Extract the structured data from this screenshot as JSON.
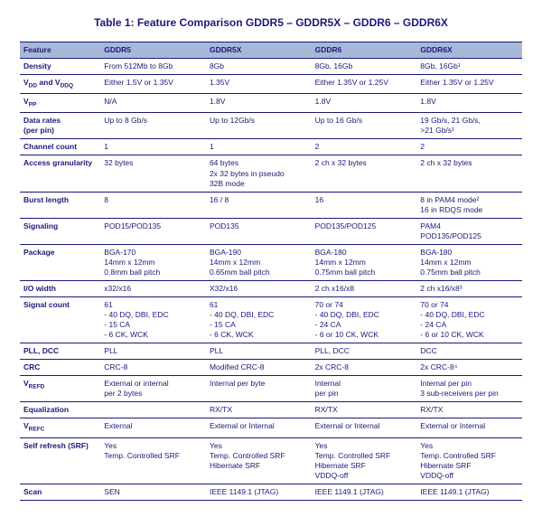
{
  "title": "Table 1: Feature Comparison GDDR5 – GDDR5X – GDDR6 – GDDR6X",
  "headers": {
    "feature": "Feature",
    "c1": "GDDR5",
    "c2": "GDDR5X",
    "c3": "GDDR6",
    "c4": "GDDR6X"
  },
  "rows": {
    "density": {
      "label": "Density",
      "c1": "From 512Mb to 8Gb",
      "c2": "8Gb",
      "c3": "8Gb, 16Gb",
      "c4": "8Gb, 16Gb¹"
    },
    "vdd": {
      "label_pre": "V",
      "label_sub1": "DD",
      "label_mid": " and V",
      "label_sub2": "DDQ",
      "c1": "Either 1.5V or 1.35V",
      "c2": "1.35V",
      "c3": "Either 1.35V or 1.25V",
      "c4": "Either 1.35V or 1.25V"
    },
    "vpp": {
      "label_pre": "V",
      "label_sub": "PP",
      "c1": "N/A",
      "c2": "1.8V",
      "c3": "1.8V",
      "c4": "1.8V"
    },
    "datarates": {
      "label_l1": "Data rates",
      "label_l2": "(per pin)",
      "c1": "Up to 8 Gb/s",
      "c2": "Up to 12Gb/s",
      "c3": "Up to 16 Gb/s",
      "c4_l1": "19 Gb/s, 21 Gb/s,",
      "c4_l2": ">21 Gb/s¹"
    },
    "channel": {
      "label": "Channel count",
      "c1": "1",
      "c2": "1",
      "c3": "2",
      "c4": "2"
    },
    "access": {
      "label": "Access granularity",
      "c1": "32 bytes",
      "c2_l1": "64 bytes",
      "c2_l2": "2x 32 bytes in pseudo",
      "c2_l3": "32B mode",
      "c3": "2 ch x 32 bytes",
      "c4": "2 ch x 32 bytes"
    },
    "burst": {
      "label": "Burst length",
      "c1": "8",
      "c2": "16 / 8",
      "c3": "16",
      "c4_l1": "8 in PAM4 mode²",
      "c4_l2": "16 in RDQS mode"
    },
    "signaling": {
      "label": "Signaling",
      "c1": "POD15/POD135",
      "c2": "POD135",
      "c3": "POD135/POD125",
      "c4_l1": "PAM4",
      "c4_l2": "POD135/POD125"
    },
    "package": {
      "label": "Package",
      "c1_l1": "BGA-170",
      "c1_l2": "14mm x 12mm",
      "c1_l3": "0.8mm ball pitch",
      "c2_l1": "BGA-190",
      "c2_l2": "14mm x 12mm",
      "c2_l3": "0.65mm ball pitch",
      "c3_l1": "BGA-180",
      "c3_l2": "14mm x 12mm",
      "c3_l3": "0.75mm ball pitch",
      "c4_l1": "BGA-180",
      "c4_l2": "14mm x 12mm",
      "c4_l3": "0.75mm ball pitch"
    },
    "iowidth": {
      "label": "I/O width",
      "c1": "x32/x16",
      "c2": "X32/x16",
      "c3": "2 ch x16/x8",
      "c4": "2 ch x16/x8³"
    },
    "signalcount": {
      "label": "Signal count",
      "c1_l1": "61",
      "c1_l2": "- 40 DQ, DBI, EDC",
      "c1_l3": "- 15 CA",
      "c1_l4": "- 6 CK, WCK",
      "c2_l1": "61",
      "c2_l2": "- 40 DQ, DBI, EDC",
      "c2_l3": "- 15 CA",
      "c2_l4": "- 6 CK, WCK",
      "c3_l1": "70 or 74",
      "c3_l2": "- 40 DQ, DBI, EDC",
      "c3_l3": "- 24 CA",
      "c3_l4": "- 6 or 10 CK, WCK",
      "c4_l1": "70 or 74",
      "c4_l2": "- 40 DQ, DBI, EDC",
      "c4_l3": "- 24 CA",
      "c4_l4": "- 6 or 10 CK, WCK"
    },
    "pll": {
      "label": "PLL, DCC",
      "c1": "PLL",
      "c2": "PLL",
      "c3": "PLL, DCC",
      "c4": "DCC"
    },
    "crc": {
      "label": "CRC",
      "c1": "CRC-8",
      "c2": "Modified CRC-8",
      "c3": "2x CRC-8",
      "c4": "2x CRC-8⁴"
    },
    "vrefd": {
      "label_pre": "V",
      "label_sub": "REFD",
      "c1_l1": "External or internal",
      "c1_l2": "per 2 bytes",
      "c2": "Internal per byte",
      "c3_l1": "Internal",
      "c3_l2": "per pin",
      "c4_l1": "Internal per pin",
      "c4_l2": "3 sub-receivers per pin"
    },
    "equalization": {
      "label": "Equalization",
      "c1": "",
      "c2": "RX/TX",
      "c3": "RX/TX",
      "c4": "RX/TX"
    },
    "vrefc": {
      "label_pre": "V",
      "label_sub": "REFC",
      "c1": "External",
      "c2": "External or Internal",
      "c3": "External or Internal",
      "c4": "External or Internal"
    },
    "selfrefresh": {
      "label": "Self refresh (SRF)",
      "c1_l1": "Yes",
      "c1_l2": "Temp. Controlled SRF",
      "c2_l1": "Yes",
      "c2_l2": "Temp. Controlled SRF",
      "c2_l3": "Hibernate SRF",
      "c3_l1": "Yes",
      "c3_l2": "Temp. Controlled SRF",
      "c3_l3": "Hibernate SRF",
      "c3_l4": "VDDQ-off",
      "c4_l1": "Yes",
      "c4_l2": "Temp. Controlled SRF",
      "c4_l3": "Hibernate SRF",
      "c4_l4": "VDDQ-off"
    },
    "scan": {
      "label": "Scan",
      "c1": "SEN",
      "c2": "IEEE 1149.1 (JTAG)",
      "c3": "IEEE 1149.1 (JTAG)",
      "c4": "IEEE 1149.1 (JTAG)"
    }
  }
}
